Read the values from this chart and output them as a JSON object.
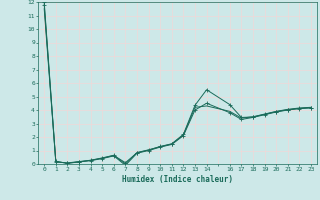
{
  "xlabel": "Humidex (Indice chaleur)",
  "background_color": "#cde8e8",
  "grid_color": "#f0d8d8",
  "line_color": "#1a6b5a",
  "xlim": [
    -0.5,
    23.5
  ],
  "ylim": [
    0,
    12
  ],
  "xtick_labels": [
    "0",
    "1",
    "2",
    "3",
    "4",
    "5",
    "6",
    "7",
    "8",
    "9",
    "10",
    "11",
    "12",
    "13",
    "14",
    "",
    "16",
    "17",
    "18",
    "19",
    "20",
    "21",
    "22",
    "23"
  ],
  "x": [
    0,
    1,
    2,
    3,
    4,
    5,
    6,
    7,
    8,
    9,
    10,
    11,
    12,
    13,
    14,
    16,
    17,
    18,
    19,
    20,
    21,
    22,
    23
  ],
  "line1_y": [
    12,
    0.2,
    0.05,
    0.15,
    0.25,
    0.4,
    0.6,
    -0.1,
    0.8,
    1.0,
    1.25,
    1.45,
    2.1,
    4.0,
    4.5,
    3.8,
    3.3,
    3.45,
    3.65,
    3.85,
    4.0,
    4.1,
    4.15
  ],
  "line2_y": [
    11.5,
    0.15,
    0.08,
    0.18,
    0.28,
    0.45,
    0.65,
    0.0,
    0.85,
    1.05,
    1.28,
    1.48,
    2.15,
    4.2,
    4.3,
    3.9,
    3.4,
    3.5,
    3.7,
    3.9,
    4.05,
    4.15,
    4.2
  ],
  "line3_y": [
    11.8,
    0.18,
    0.06,
    0.16,
    0.27,
    0.43,
    0.63,
    0.1,
    0.83,
    1.03,
    1.3,
    1.5,
    2.2,
    4.35,
    5.5,
    4.4,
    3.45,
    3.48,
    3.68,
    3.88,
    4.02,
    4.12,
    4.18
  ]
}
